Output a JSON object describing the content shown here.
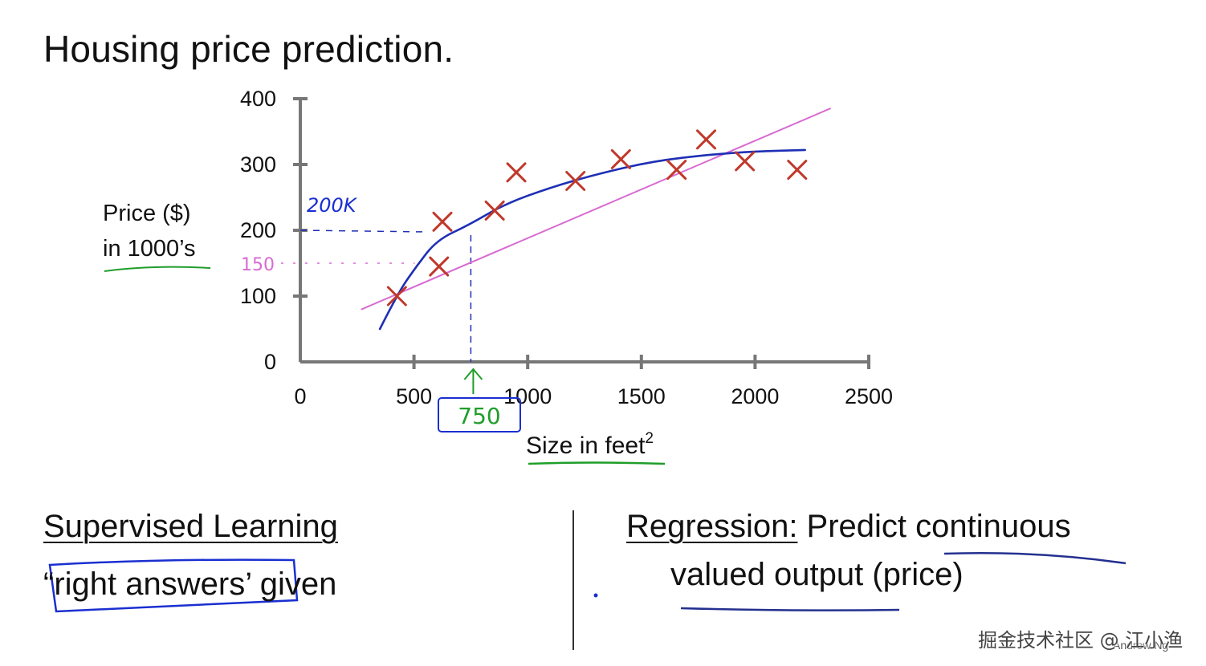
{
  "slide": {
    "title": "Housing price prediction.",
    "author": "Andrew Ng",
    "watermark": "掘金技术社区 @ 江小渔"
  },
  "left_panel": {
    "heading": "Supervised Learning",
    "note_quote_open": "“",
    "note_boxed": "right answers’",
    "note_rest": " given"
  },
  "right_panel": {
    "heading": "Regression:",
    "line1_rest": " Predict continuous",
    "line2": "valued output (price)"
  },
  "chart_data": {
    "type": "scatter",
    "title": "",
    "ylabel_line1": "Price ($)",
    "ylabel_line2": "in 1000’s",
    "xlabel": "Size in feet",
    "xlabel_sup": "2",
    "xlim": [
      0,
      2500
    ],
    "ylim": [
      0,
      400
    ],
    "xticks": [
      "0",
      "500",
      "1000",
      "1500",
      "2000",
      "2500"
    ],
    "yticks": [
      "0",
      "100",
      "200",
      "300",
      "400"
    ],
    "points": [
      {
        "x": 425,
        "y": 100
      },
      {
        "x": 610,
        "y": 145
      },
      {
        "x": 625,
        "y": 213
      },
      {
        "x": 855,
        "y": 230
      },
      {
        "x": 950,
        "y": 288
      },
      {
        "x": 1210,
        "y": 275
      },
      {
        "x": 1410,
        "y": 308
      },
      {
        "x": 1655,
        "y": 292
      },
      {
        "x": 1785,
        "y": 338
      },
      {
        "x": 1955,
        "y": 305
      },
      {
        "x": 2185,
        "y": 292
      }
    ],
    "fits": [
      {
        "kind": "straight",
        "color": "#d86bd2",
        "points": [
          [
            270,
            80
          ],
          [
            2330,
            385
          ]
        ]
      },
      {
        "kind": "curve",
        "color": "#1e2fb5",
        "points": [
          [
            350,
            50
          ],
          [
            430,
            105
          ],
          [
            510,
            145
          ],
          [
            600,
            185
          ],
          [
            740,
            208
          ],
          [
            900,
            240
          ],
          [
            1100,
            265
          ],
          [
            1300,
            285
          ],
          [
            1550,
            305
          ],
          [
            1800,
            315
          ],
          [
            2000,
            320
          ],
          [
            2220,
            322
          ]
        ]
      }
    ],
    "annotations": {
      "query_x": "750",
      "pred_curve": "200K",
      "pred_line": "150",
      "query_x_value": 750,
      "pred_curve_value": 200,
      "pred_line_value": 150
    }
  },
  "colors": {
    "points": "#c0392b",
    "axis": "#777777",
    "curve": "#1e2fb5",
    "line": "#d86bd2",
    "green": "#1f9e2b",
    "blue_ink": "#1a2fd0"
  }
}
